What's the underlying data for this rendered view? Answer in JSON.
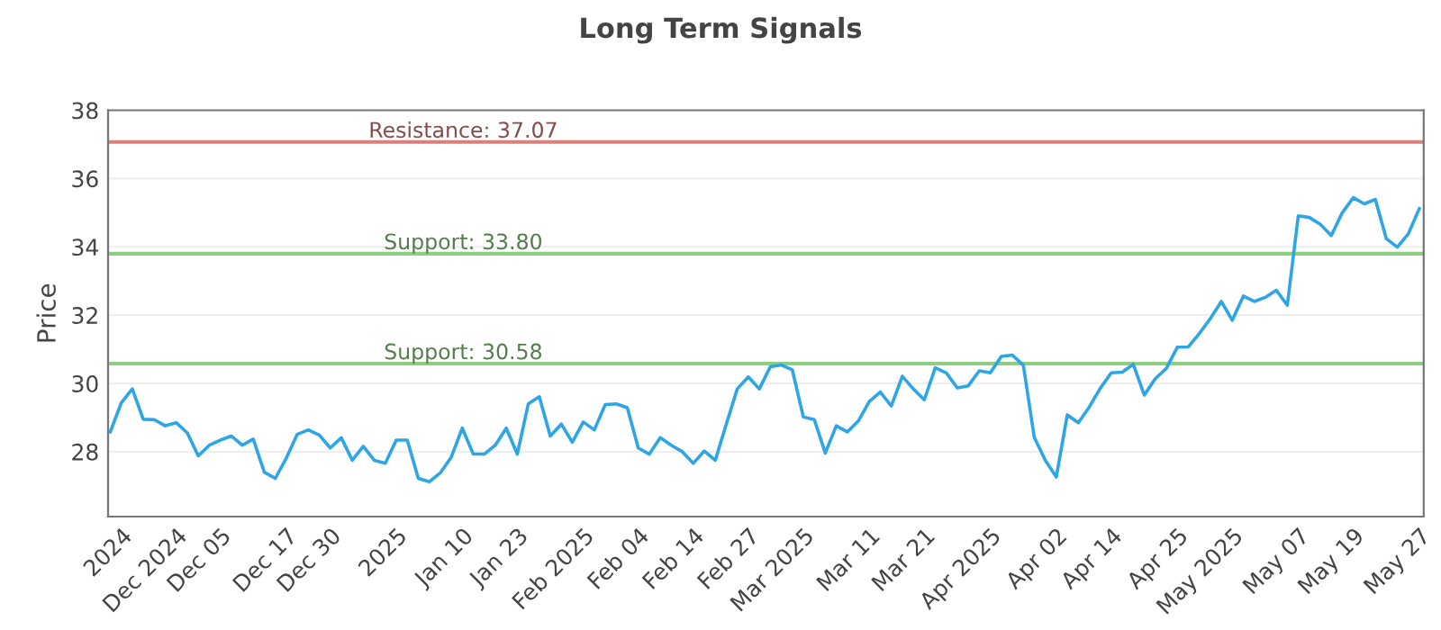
{
  "chart_data": {
    "type": "line",
    "title": "Long Term Signals",
    "ylabel": "Price",
    "categories": [
      null,
      "2024",
      null,
      null,
      null,
      null,
      "Dec 2024",
      null,
      null,
      null,
      "Dec 05",
      null,
      null,
      null,
      null,
      null,
      "Dec 17",
      null,
      null,
      null,
      "Dec 30",
      null,
      null,
      null,
      null,
      null,
      "2025",
      null,
      null,
      null,
      null,
      null,
      "Jan 10",
      null,
      null,
      null,
      null,
      "Jan 23",
      null,
      null,
      null,
      null,
      null,
      "Feb 2025",
      null,
      null,
      null,
      null,
      "Feb 04",
      null,
      null,
      null,
      null,
      "Feb 14",
      null,
      null,
      null,
      null,
      "Feb 27",
      null,
      null,
      null,
      null,
      "Mar 2025",
      null,
      null,
      null,
      null,
      null,
      "Mar 11",
      null,
      null,
      null,
      null,
      "Mar 21",
      null,
      null,
      null,
      null,
      null,
      "Apr 2025",
      null,
      null,
      null,
      null,
      null,
      "Apr 02",
      null,
      null,
      null,
      null,
      "Apr 14",
      null,
      null,
      null,
      null,
      null,
      "Apr 25",
      null,
      null,
      null,
      null,
      "May 2025",
      null,
      null,
      null,
      null,
      null,
      "May 07",
      null,
      null,
      null,
      null,
      "May 19",
      null,
      null,
      null,
      null,
      null,
      "May 27"
    ],
    "series": [
      {
        "color": "#2ea6e6",
        "values": [
          28.58,
          29.43,
          29.84,
          28.95,
          28.94,
          28.76,
          28.85,
          28.55,
          27.88,
          28.19,
          28.34,
          28.46,
          28.19,
          28.37,
          27.4,
          27.22,
          27.81,
          28.51,
          28.64,
          28.49,
          28.11,
          28.41,
          27.75,
          28.16,
          27.75,
          27.66,
          28.34,
          28.34,
          27.22,
          27.12,
          27.38,
          27.84,
          28.69,
          27.93,
          27.93,
          28.19,
          28.69,
          27.93,
          29.4,
          29.61,
          28.46,
          28.81,
          28.28,
          28.87,
          28.64,
          29.38,
          29.4,
          29.29,
          28.11,
          27.93,
          28.41,
          28.19,
          28.0,
          27.66,
          28.02,
          27.75,
          28.81,
          29.84,
          30.19,
          29.84,
          30.49,
          30.54,
          30.4,
          29.02,
          28.94,
          27.96,
          28.76,
          28.58,
          28.9,
          29.47,
          29.75,
          29.34,
          30.21,
          29.84,
          29.52,
          30.46,
          30.31,
          29.87,
          29.93,
          30.37,
          30.31,
          30.79,
          30.83,
          30.54,
          28.42,
          27.75,
          27.26,
          29.08,
          28.85,
          29.31,
          29.86,
          30.31,
          30.33,
          30.56,
          29.66,
          30.14,
          30.44,
          31.06,
          31.07,
          31.46,
          31.9,
          32.4,
          31.85,
          32.56,
          32.4,
          32.52,
          32.73,
          32.29,
          34.91,
          34.86,
          34.66,
          34.33,
          35.0,
          35.44,
          35.26,
          35.39,
          34.24,
          33.99,
          34.38,
          35.12
        ]
      }
    ],
    "ylim": [
      26.1,
      38
    ],
    "yticks": [
      28,
      30,
      32,
      34,
      36,
      38
    ],
    "grid": "y",
    "marker": "none",
    "line_style": "solid",
    "ref_lines": [
      {
        "axis": "y",
        "value": 37.07,
        "label": "Resistance: 37.07",
        "color": "#d9807c"
      },
      {
        "axis": "y",
        "value": 33.8,
        "label": "Support: 33.80",
        "color": "#8ccf7e"
      },
      {
        "axis": "y",
        "value": 30.58,
        "label": "Support: 30.58",
        "color": "#8ccf7e"
      }
    ]
  }
}
